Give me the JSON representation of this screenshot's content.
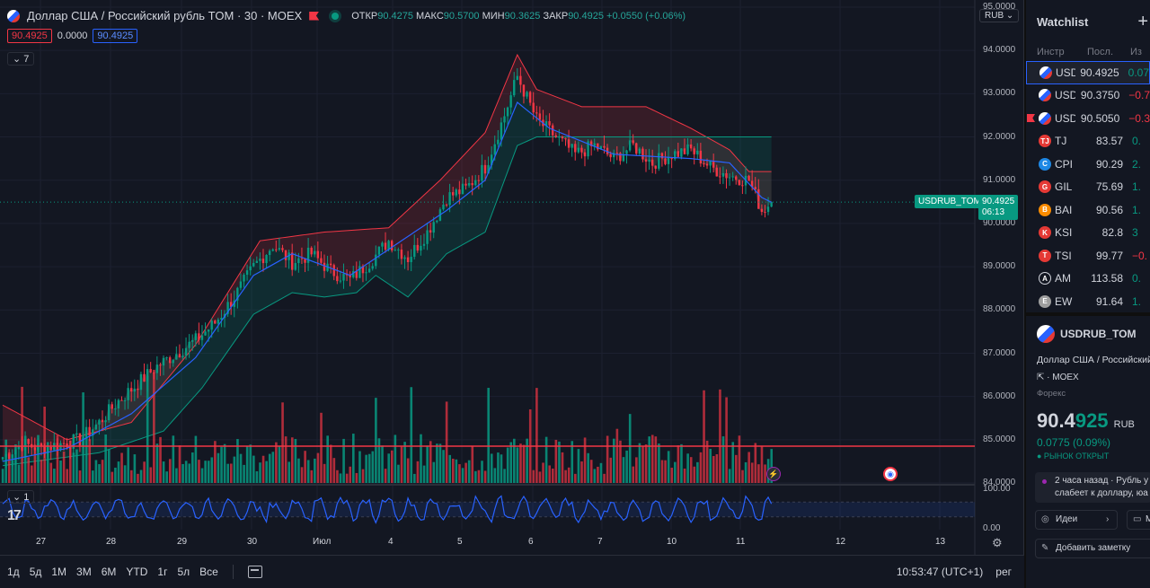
{
  "header": {
    "title": "Доллар США / Российский рубль TOM · 30 · MOEX",
    "ohlc": {
      "open_label": "ОТКР",
      "open": "90.4275",
      "high_label": "МАКС",
      "high": "90.5700",
      "low_label": "МИН",
      "low": "90.3625",
      "close_label": "ЗАКР",
      "close": "90.4925",
      "change": "+0.0550 (+0.06%)"
    },
    "bid": "90.4925",
    "spread": "0.0000",
    "ask": "90.4925",
    "indicator_count": "7",
    "osc_count": "1",
    "currency": "RUB"
  },
  "price_axis": [
    "95.0000",
    "94.0000",
    "93.0000",
    "92.0000",
    "91.0000",
    "90.0000",
    "89.0000",
    "88.0000",
    "87.0000",
    "86.0000",
    "85.0000",
    "84.0000"
  ],
  "osc_axis": [
    "100.00",
    "0.00"
  ],
  "time_axis": [
    "27",
    "28",
    "29",
    "30",
    "Июл",
    "4",
    "5",
    "6",
    "7",
    "10",
    "11",
    "12",
    "13"
  ],
  "last_price": {
    "symbol": "USDRUB_TOM",
    "price": "90.4925",
    "countdown": "06:13"
  },
  "chart_data": {
    "type": "candlestick",
    "title": "Доллар США / Российский рубль TOM · 30 · MOEX",
    "x_labels": [
      "27",
      "28",
      "29",
      "30",
      "Июл",
      "4",
      "5",
      "6",
      "7",
      "10",
      "11",
      "12",
      "13"
    ],
    "ylim": [
      84.0,
      95.0
    ],
    "close_path": [
      [
        0,
        84.6
      ],
      [
        6,
        84.9
      ],
      [
        12,
        84.8
      ],
      [
        18,
        84.9
      ],
      [
        24,
        85.0
      ],
      [
        30,
        85.4
      ],
      [
        36,
        85.9
      ],
      [
        42,
        86.3
      ],
      [
        48,
        86.7
      ],
      [
        54,
        87.0
      ],
      [
        60,
        87.3
      ],
      [
        66,
        87.7
      ],
      [
        72,
        88.3
      ],
      [
        78,
        89.0
      ],
      [
        84,
        89.5
      ],
      [
        90,
        89.1
      ],
      [
        96,
        89.3
      ],
      [
        102,
        88.9
      ],
      [
        108,
        88.7
      ],
      [
        114,
        89.1
      ],
      [
        120,
        89.6
      ],
      [
        126,
        89.2
      ],
      [
        132,
        89.8
      ],
      [
        138,
        90.6
      ],
      [
        144,
        90.8
      ],
      [
        150,
        91.3
      ],
      [
        156,
        92.5
      ],
      [
        160,
        93.4
      ],
      [
        166,
        92.4
      ],
      [
        172,
        92.0
      ],
      [
        178,
        91.6
      ],
      [
        184,
        91.8
      ],
      [
        190,
        91.5
      ],
      [
        196,
        91.8
      ],
      [
        202,
        91.4
      ],
      [
        208,
        91.6
      ],
      [
        214,
        91.7
      ],
      [
        220,
        91.3
      ],
      [
        226,
        91.1
      ],
      [
        232,
        91.0
      ],
      [
        236,
        90.3
      ],
      [
        239,
        90.49
      ]
    ],
    "ma_path": [
      [
        0,
        84.5
      ],
      [
        20,
        84.8
      ],
      [
        40,
        85.6
      ],
      [
        60,
        86.9
      ],
      [
        78,
        88.8
      ],
      [
        90,
        89.3
      ],
      [
        108,
        88.8
      ],
      [
        120,
        89.4
      ],
      [
        138,
        90.3
      ],
      [
        150,
        91.0
      ],
      [
        160,
        92.8
      ],
      [
        170,
        92.2
      ],
      [
        190,
        91.6
      ],
      [
        214,
        91.5
      ],
      [
        226,
        91.4
      ],
      [
        236,
        90.6
      ],
      [
        239,
        90.49
      ]
    ],
    "upper_band_path": [
      [
        0,
        85.8
      ],
      [
        20,
        85.0
      ],
      [
        40,
        85.4
      ],
      [
        60,
        87.2
      ],
      [
        80,
        89.6
      ],
      [
        100,
        89.8
      ],
      [
        120,
        89.9
      ],
      [
        136,
        91.0
      ],
      [
        150,
        92.1
      ],
      [
        160,
        93.9
      ],
      [
        166,
        93.1
      ],
      [
        180,
        92.7
      ],
      [
        200,
        92.7
      ],
      [
        214,
        92.2
      ],
      [
        226,
        91.7
      ],
      [
        232,
        91.2
      ],
      [
        239,
        91.2
      ]
    ],
    "lower_band_path": [
      [
        0,
        84.4
      ],
      [
        30,
        84.7
      ],
      [
        50,
        85.2
      ],
      [
        62,
        86.2
      ],
      [
        78,
        87.9
      ],
      [
        90,
        88.4
      ],
      [
        100,
        88.3
      ],
      [
        110,
        88.4
      ],
      [
        116,
        88.8
      ],
      [
        126,
        88.3
      ],
      [
        138,
        89.3
      ],
      [
        150,
        89.8
      ],
      [
        160,
        91.8
      ],
      [
        166,
        92.0
      ],
      [
        239,
        92.0
      ]
    ],
    "volume_range": [
      0,
      100
    ],
    "oscillator": {
      "range": [
        0,
        100
      ]
    },
    "horizontal_level": 84.85,
    "last": 90.4925
  },
  "bottom_bar": {
    "timeframes": [
      "1д",
      "5д",
      "1М",
      "3М",
      "6М",
      "YTD",
      "1г",
      "5л",
      "Все"
    ],
    "clock": "10:53:47 (UTC+1)",
    "session": "рег"
  },
  "watchlist": {
    "title": "Watchlist",
    "columns": [
      "Инстр",
      "Посл.",
      "Из"
    ],
    "rows": [
      {
        "sym": "USDF",
        "price": "90.4925",
        "chg": "0.07",
        "dir": "up",
        "sel": true,
        "flag": false,
        "icon_color": "#2962ff",
        "letter": ""
      },
      {
        "sym": "USDF",
        "price": "90.3750",
        "chg": "−0.7",
        "dir": "dn",
        "sel": false,
        "flag": false,
        "icon_color": "#2962ff",
        "letter": ""
      },
      {
        "sym": "USDF",
        "price": "90.5050",
        "chg": "−0.3",
        "dir": "dn",
        "sel": false,
        "flag": true,
        "icon_color": "#2962ff",
        "letter": ""
      },
      {
        "sym": "TJ",
        "price": "83.57",
        "chg": "0.",
        "dir": "up",
        "sel": false,
        "flag": false,
        "icon_color": "#e53935",
        "letter": "TJ"
      },
      {
        "sym": "CPI",
        "price": "90.29",
        "chg": "2.",
        "dir": "up",
        "sel": false,
        "flag": false,
        "icon_color": "#1e88e5",
        "letter": "C"
      },
      {
        "sym": "GIL",
        "price": "75.69",
        "chg": "1.",
        "dir": "up",
        "sel": false,
        "flag": false,
        "icon_color": "#e53935",
        "letter": "G"
      },
      {
        "sym": "BAI",
        "price": "90.56",
        "chg": "1.",
        "dir": "up",
        "sel": false,
        "flag": false,
        "icon_color": "#fb8c00",
        "letter": "B"
      },
      {
        "sym": "KSI",
        "price": "82.8",
        "chg": "3",
        "dir": "up",
        "sel": false,
        "flag": false,
        "icon_color": "#e53935",
        "letter": "K"
      },
      {
        "sym": "TSI",
        "price": "99.77",
        "chg": "−0.",
        "dir": "dn",
        "sel": false,
        "flag": false,
        "icon_color": "#e53935",
        "letter": "T"
      },
      {
        "sym": "AM",
        "price": "113.58",
        "chg": "0.",
        "dir": "up",
        "sel": false,
        "flag": false,
        "icon_color": "#131722",
        "letter": "A"
      },
      {
        "sym": "EW",
        "price": "91.64",
        "chg": "1.",
        "dir": "up",
        "sel": false,
        "flag": false,
        "icon_color": "#9e9e9e",
        "letter": "E"
      }
    ]
  },
  "details": {
    "symbol": "USDRUB_TOM",
    "name": "Доллар США / Российский",
    "exchange": "MOEX",
    "type": "Форекс",
    "price_main": "90.4",
    "price_tail": "925",
    "currency": "RUB",
    "change": "0.0775 (0.09%)",
    "status": "● РЫНОК ОТКРЫТ",
    "news_line1": "2 часа назад · Рубль у",
    "news_line2": "слабеет к доллару, юа",
    "ideas_label": "Идеи",
    "ideas2_label": "М",
    "note_label": "Добавить заметку"
  },
  "colors": {
    "up": "#089981",
    "down": "#f23645",
    "ma": "#2962ff",
    "bg": "#131722"
  }
}
